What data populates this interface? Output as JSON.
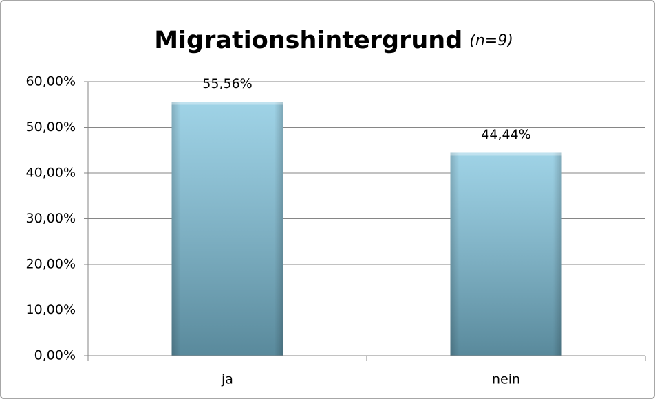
{
  "chart_data": {
    "type": "bar",
    "title": "Migrationshintergrund",
    "subtitle": "(n=9)",
    "categories": [
      "ja",
      "nein"
    ],
    "values": [
      55.56,
      44.44
    ],
    "value_labels": [
      "55,56%",
      "44,44%"
    ],
    "color": "#7fc4de",
    "ylim": [
      0,
      60
    ],
    "yticks": [
      {
        "value": 0,
        "label": "0,00%"
      },
      {
        "value": 10,
        "label": "10,00%"
      },
      {
        "value": 20,
        "label": "20,00%"
      },
      {
        "value": 30,
        "label": "30,00%"
      },
      {
        "value": 40,
        "label": "40,00%"
      },
      {
        "value": 50,
        "label": "50,00%"
      },
      {
        "value": 60,
        "label": "60,00%"
      }
    ],
    "grid": true
  }
}
